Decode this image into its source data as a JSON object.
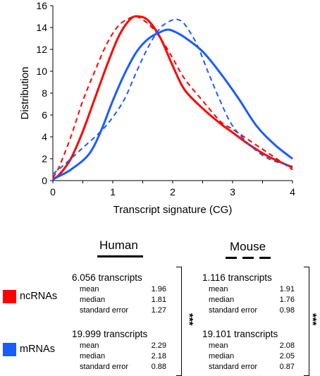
{
  "chart_data": {
    "type": "line",
    "xlabel": "Transcript signature (CG)",
    "ylabel": "Distribution",
    "xlim": [
      0,
      4
    ],
    "ylim": [
      0,
      16
    ],
    "xticks": [
      "0",
      "1",
      "2",
      "3",
      "4"
    ],
    "yticks": [
      "0",
      "2",
      "4",
      "6",
      "8",
      "10",
      "12",
      "14",
      "16"
    ],
    "series": [
      {
        "name": "ncRNAs Human",
        "color": "#ff0000",
        "dashed": false,
        "x": [
          0,
          0.1,
          0.3,
          0.5,
          0.7,
          0.9,
          1.1,
          1.3,
          1.45,
          1.6,
          1.8,
          2.0,
          2.2,
          2.5,
          2.8,
          3.0,
          3.3,
          3.6,
          4.0
        ],
        "y": [
          0.2,
          0.5,
          2.0,
          4.5,
          7.5,
          10.5,
          13.2,
          14.8,
          15.0,
          14.6,
          13.0,
          10.5,
          8.3,
          6.6,
          5.2,
          4.4,
          3.2,
          2.2,
          1.2
        ]
      },
      {
        "name": "ncRNAs Mouse",
        "color": "#ff0000",
        "dashed": true,
        "x": [
          0,
          0.1,
          0.3,
          0.5,
          0.7,
          0.9,
          1.1,
          1.3,
          1.4,
          1.6,
          1.8,
          2.0,
          2.2,
          2.5,
          2.8,
          3.0,
          3.3,
          3.6,
          4.0
        ],
        "y": [
          0.3,
          1.2,
          4.0,
          7.3,
          10.0,
          12.5,
          14.2,
          14.9,
          15.0,
          14.3,
          13.0,
          11.2,
          9.3,
          7.3,
          5.4,
          4.7,
          3.6,
          2.5,
          1.0
        ]
      },
      {
        "name": "mRNAs Human",
        "color": "#1a5cff",
        "dashed": false,
        "x": [
          0,
          0.1,
          0.3,
          0.6,
          0.8,
          1.0,
          1.2,
          1.4,
          1.6,
          1.8,
          1.9,
          2.0,
          2.2,
          2.5,
          2.8,
          3.1,
          3.4,
          3.7,
          4.0
        ],
        "y": [
          0.1,
          0.4,
          1.0,
          2.4,
          4.5,
          7.3,
          9.8,
          11.8,
          13.0,
          13.6,
          13.8,
          13.7,
          13.1,
          11.8,
          9.8,
          7.5,
          5.0,
          3.3,
          2.0
        ]
      },
      {
        "name": "mRNAs Mouse",
        "color": "#1a5cff",
        "dashed": true,
        "x": [
          0,
          0.2,
          0.5,
          0.8,
          1.0,
          1.2,
          1.4,
          1.6,
          1.8,
          2.0,
          2.1,
          2.2,
          2.4,
          2.6,
          2.8,
          3.0,
          3.3,
          3.6,
          4.0
        ],
        "y": [
          0.6,
          1.5,
          3.0,
          4.5,
          5.8,
          7.5,
          10.0,
          12.3,
          14.0,
          14.7,
          14.7,
          14.3,
          12.5,
          9.8,
          7.2,
          5.0,
          3.2,
          2.0,
          1.3
        ]
      }
    ]
  },
  "table": {
    "human_header": "Human",
    "mouse_header": "Mouse",
    "human_nc_count": "6.056 transcripts",
    "human_m_count": "19.999 transcripts",
    "mouse_nc_count": "1.116 transcripts",
    "mouse_m_count": "19.101 transcripts",
    "human_nc": [
      [
        "mean",
        "1.96"
      ],
      [
        "median",
        "1.81"
      ],
      [
        "standard error",
        "1.27"
      ]
    ],
    "human_m": [
      [
        "mean",
        "2.29"
      ],
      [
        "median",
        "2.18"
      ],
      [
        "standard error",
        "0.88"
      ]
    ],
    "mouse_nc": [
      [
        "mean",
        "1.91"
      ],
      [
        "median",
        "1.76"
      ],
      [
        "standard error",
        "0.98"
      ]
    ],
    "mouse_m": [
      [
        "mean",
        "2.08"
      ],
      [
        "median",
        "2.05"
      ],
      [
        "standard error",
        "0.87"
      ]
    ],
    "significance": "***"
  },
  "legend": {
    "nc_label": "ncRNAs",
    "m_label": "mRNAs",
    "nc_color": "#ff0000",
    "m_color": "#1a5cff"
  }
}
